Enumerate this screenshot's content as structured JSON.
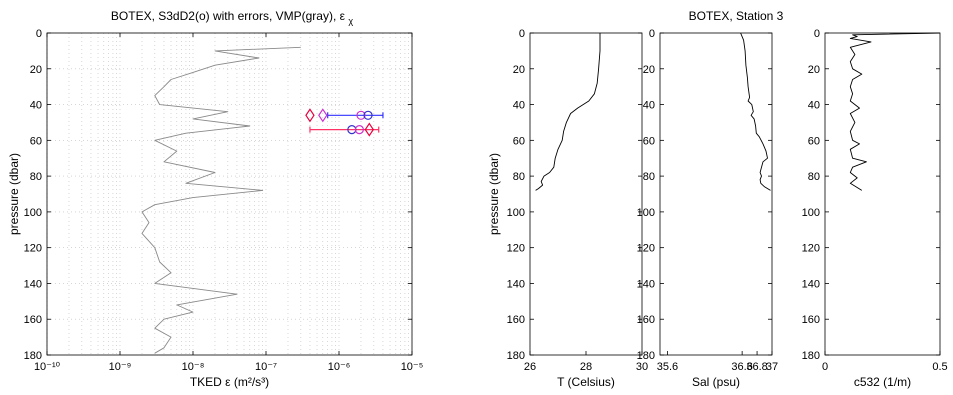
{
  "figure": {
    "left_title": "BOTEX, S3dD2(o) with errors, VMP(gray),",
    "left_title_symbol": "ε",
    "left_title_sub": "χ",
    "right_title": "BOTEX, Station 3",
    "shared_ylabel": "pressure (dbar)"
  },
  "chart_data": [
    {
      "type": "line",
      "panel": "epsilon",
      "xscale": "log",
      "xlim": [
        1e-10,
        1e-05
      ],
      "ylim": [
        180,
        0
      ],
      "yreversed": true,
      "grid": true,
      "xlabel": "TKED ε (m²/s³)",
      "ylabel": "pressure (dbar)",
      "xticks": [
        "10⁻¹⁰",
        "10⁻⁹",
        "10⁻⁸",
        "10⁻⁷",
        "10⁻⁶",
        "10⁻⁵"
      ],
      "yticks": [
        "0",
        "20",
        "40",
        "60",
        "80",
        "100",
        "120",
        "140",
        "160",
        "180"
      ],
      "series": [
        {
          "color": "#8a8a8a",
          "profile": [
            [
              8,
              3e-07
            ],
            [
              10,
              2e-08
            ],
            [
              14,
              8e-08
            ],
            [
              18,
              2e-08
            ],
            [
              22,
              1e-08
            ],
            [
              26,
              5e-09
            ],
            [
              30,
              4e-09
            ],
            [
              35,
              3e-09
            ],
            [
              40,
              3.5e-09
            ],
            [
              44,
              3e-08
            ],
            [
              48,
              1e-08
            ],
            [
              52,
              6e-08
            ],
            [
              56,
              8e-09
            ],
            [
              60,
              3e-09
            ],
            [
              66,
              6e-09
            ],
            [
              72,
              4e-09
            ],
            [
              78,
              2e-08
            ],
            [
              84,
              8e-09
            ],
            [
              88,
              9e-08
            ],
            [
              92,
              1e-08
            ],
            [
              96,
              3e-09
            ],
            [
              100,
              2e-09
            ],
            [
              106,
              2.5e-09
            ],
            [
              112,
              2e-09
            ],
            [
              120,
              3e-09
            ],
            [
              128,
              3.5e-09
            ],
            [
              134,
              5e-09
            ],
            [
              140,
              3e-09
            ],
            [
              146,
              4e-08
            ],
            [
              152,
              6e-09
            ],
            [
              156,
              1e-08
            ],
            [
              160,
              4e-09
            ],
            [
              165,
              3e-09
            ],
            [
              170,
              5e-09
            ],
            [
              176,
              4e-09
            ],
            [
              179,
              3e-09
            ]
          ]
        }
      ],
      "markers": [
        {
          "shape": "diamond",
          "color": "#e8003d",
          "eps": 4e-07,
          "p": 46
        },
        {
          "shape": "diamond",
          "color": "#cc33cc",
          "eps": 6e-07,
          "p": 46
        },
        {
          "shape": "circle",
          "color": "#cc33cc",
          "eps": 2e-06,
          "p": 46
        },
        {
          "shape": "circle",
          "color": "#3333cc",
          "eps": 2.5e-06,
          "p": 46
        },
        {
          "shape": "circle",
          "color": "#3333cc",
          "eps": 1.5e-06,
          "p": 54
        },
        {
          "shape": "circle",
          "color": "#cc33cc",
          "eps": 1.9e-06,
          "p": 54
        },
        {
          "shape": "diamond",
          "color": "#e8003d",
          "eps": 2.6e-06,
          "p": 54
        }
      ],
      "errorbars": [
        {
          "color": "#3333ff",
          "p": 46,
          "from": 7e-07,
          "to": 4e-06
        },
        {
          "color": "#ff3366",
          "p": 54,
          "from": 4e-07,
          "to": 3.5e-06
        }
      ]
    },
    {
      "type": "line",
      "panel": "temperature",
      "xlim": [
        26,
        30
      ],
      "ylim": [
        180,
        0
      ],
      "yreversed": true,
      "grid": false,
      "xlabel": "T (Celsius)",
      "ylabel": "pressure (dbar)",
      "xticks": [
        "26",
        "28",
        "30"
      ],
      "yticks": [
        "0",
        "20",
        "40",
        "60",
        "80",
        "100",
        "120",
        "140",
        "160",
        "180"
      ],
      "series": [
        {
          "color": "#000000",
          "profile": [
            [
              0,
              28.5
            ],
            [
              5,
              28.5
            ],
            [
              10,
              28.5
            ],
            [
              20,
              28.45
            ],
            [
              28,
              28.4
            ],
            [
              34,
              28.3
            ],
            [
              38,
              28.1
            ],
            [
              42,
              27.7
            ],
            [
              45,
              27.45
            ],
            [
              50,
              27.3
            ],
            [
              55,
              27.2
            ],
            [
              60,
              27.15
            ],
            [
              65,
              27.0
            ],
            [
              70,
              26.9
            ],
            [
              75,
              26.85
            ],
            [
              78,
              26.7
            ],
            [
              80,
              26.5
            ],
            [
              83,
              26.4
            ],
            [
              85,
              26.45
            ],
            [
              87,
              26.3
            ],
            [
              88,
              26.2
            ]
          ]
        }
      ]
    },
    {
      "type": "line",
      "panel": "salinity",
      "xlim": [
        35.5,
        37
      ],
      "ylim": [
        180,
        0
      ],
      "yreversed": true,
      "grid": false,
      "xlabel": "Sal (psu)",
      "ylabel": "",
      "xticks": [
        "35.6",
        "36.6",
        "36.8",
        "37"
      ],
      "yticks": [
        "0",
        "20",
        "40",
        "60",
        "80",
        "100",
        "120",
        "140",
        "160",
        "180"
      ],
      "series": [
        {
          "color": "#000000",
          "profile": [
            [
              0,
              36.58
            ],
            [
              2,
              36.6
            ],
            [
              4,
              36.62
            ],
            [
              10,
              36.64
            ],
            [
              18,
              36.65
            ],
            [
              25,
              36.67
            ],
            [
              30,
              36.68
            ],
            [
              36,
              36.7
            ],
            [
              38,
              36.68
            ],
            [
              40,
              36.73
            ],
            [
              44,
              36.75
            ],
            [
              46,
              36.72
            ],
            [
              48,
              36.76
            ],
            [
              52,
              36.78
            ],
            [
              56,
              36.79
            ],
            [
              58,
              36.83
            ],
            [
              62,
              36.88
            ],
            [
              66,
              36.92
            ],
            [
              70,
              36.94
            ],
            [
              72,
              36.88
            ],
            [
              75,
              36.86
            ],
            [
              78,
              36.84
            ],
            [
              80,
              36.86
            ],
            [
              82,
              36.84
            ],
            [
              84,
              36.85
            ],
            [
              86,
              36.9
            ],
            [
              88,
              36.98
            ]
          ]
        }
      ]
    },
    {
      "type": "line",
      "panel": "c532",
      "xlim": [
        0,
        0.5
      ],
      "ylim": [
        180,
        0
      ],
      "yreversed": true,
      "grid": false,
      "xlabel": "c532 (1/m)",
      "ylabel": "",
      "xticks": [
        "0",
        "0.5"
      ],
      "yticks": [
        "0",
        "20",
        "40",
        "60",
        "80",
        "100",
        "120",
        "140",
        "160",
        "180"
      ],
      "series": [
        {
          "color": "#000000",
          "profile": [
            [
              0,
              0.5
            ],
            [
              1,
              0.12
            ],
            [
              2,
              0.14
            ],
            [
              3,
              0.11
            ],
            [
              5,
              0.2
            ],
            [
              8,
              0.11
            ],
            [
              12,
              0.13
            ],
            [
              16,
              0.11
            ],
            [
              20,
              0.12
            ],
            [
              23,
              0.16
            ],
            [
              26,
              0.12
            ],
            [
              30,
              0.11
            ],
            [
              34,
              0.12
            ],
            [
              38,
              0.11
            ],
            [
              42,
              0.15
            ],
            [
              45,
              0.11
            ],
            [
              50,
              0.13
            ],
            [
              55,
              0.11
            ],
            [
              60,
              0.12
            ],
            [
              62,
              0.15
            ],
            [
              65,
              0.11
            ],
            [
              70,
              0.12
            ],
            [
              72,
              0.18
            ],
            [
              75,
              0.12
            ],
            [
              78,
              0.11
            ],
            [
              81,
              0.14
            ],
            [
              84,
              0.11
            ],
            [
              88,
              0.16
            ]
          ]
        }
      ]
    }
  ]
}
